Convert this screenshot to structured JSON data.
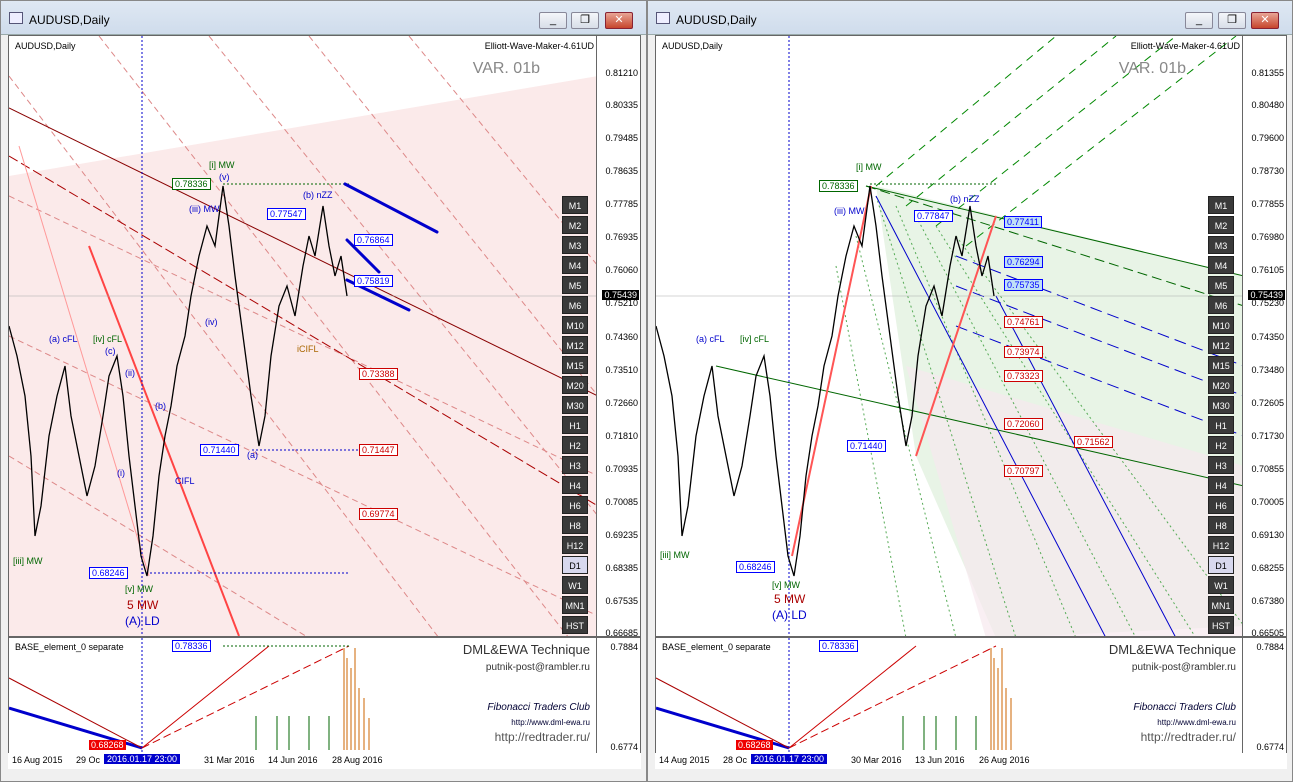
{
  "left": {
    "window_title": "AUDUSD,Daily",
    "symbol": "AUDUSD,Daily",
    "indicator": "Elliott-Wave-Maker-4.61UD",
    "variant": "VAR. 01b",
    "price_axis": [
      "0.81210",
      "0.80335",
      "0.79485",
      "0.78635",
      "0.77785",
      "0.76935",
      "0.76060",
      "0.75210",
      "0.74360",
      "0.73510",
      "0.72660",
      "0.71810",
      "0.70935",
      "0.70085",
      "0.69235",
      "0.68385",
      "0.67535",
      "0.66685"
    ],
    "current_price": "0.75439",
    "boxes": {
      "high": "0.78336",
      "b_nzz": "0.77547",
      "p76864": "0.76864",
      "p75819": "0.75819",
      "p73388": "0.73388",
      "low_a": "0.71440",
      "p71447": "0.71447",
      "p69774": "0.69774",
      "low": "0.68246"
    },
    "wave_labels": {
      "i_mw": "[i] MW",
      "iii_mw": "(iii) MW",
      "b_nzz": "(b) nZZ",
      "v": "(v)",
      "iv": "(iv)",
      "a": "(a)",
      "a_cfl": "(a) cFL",
      "iv_cfl": "[iv] cFL",
      "c": "(c)",
      "ii": "(ii)",
      "b": "(b)",
      "i": "(i)",
      "iii_mw_low": "[iii] MW",
      "v_mw": "[v] MW",
      "five_mw": "5 MW",
      "a_ld": "(A) LD",
      "cifl": "iCIFL",
      "cfl": "CIFL"
    },
    "indicator_window": "BASE_element_0 separate",
    "ind_box": "0.78336",
    "ind_low": "0.68268",
    "ind_axis_top": "0.7884",
    "ind_axis_bot": "0.6774",
    "tech": "DML&EWA Technique",
    "mail": "putnik-post@rambler.ru",
    "club": "Fibonacci Traders Club",
    "club_url": "http://www.dml-ewa.ru",
    "redtrader": "http://redtrader.ru/",
    "dates": [
      "16 Aug 2015",
      "29 Oc",
      "31 Mar 2016",
      "14 Jun 2016",
      "28 Aug 2016"
    ],
    "cursor_date": "2016.01.17 23:00"
  },
  "right": {
    "window_title": "AUDUSD,Daily",
    "symbol": "AUDUSD,Daily",
    "indicator": "Elliott-Wave-Maker-4.61UD",
    "variant": "VAR. 01b",
    "price_axis": [
      "0.81355",
      "0.80480",
      "0.79600",
      "0.78730",
      "0.77855",
      "0.76980",
      "0.76105",
      "0.75230",
      "0.74350",
      "0.73480",
      "0.72605",
      "0.71730",
      "0.70855",
      "0.70005",
      "0.69130",
      "0.68255",
      "0.67380",
      "0.66505"
    ],
    "current_price": "0.75439",
    "boxes": {
      "high": "0.78336",
      "b_nzz": "0.77847",
      "p77411": "0.77411",
      "p76294": "0.76294",
      "p75735": "0.75735",
      "p74761": "0.74761",
      "p73974": "0.73974",
      "p73323": "0.73323",
      "low_a": "0.71440",
      "p72060": "0.72060",
      "p71562": "0.71562",
      "p70797": "0.70797",
      "low": "0.68246"
    },
    "indicator_window": "BASE_element_0 separate",
    "ind_box": "0.78336",
    "ind_low": "0.68268",
    "ind_axis_top": "0.7884",
    "ind_axis_bot": "0.6774",
    "tech": "DML&EWA Technique",
    "mail": "putnik-post@rambler.ru",
    "club": "Fibonacci Traders Club",
    "club_url": "http://www.dml-ewa.ru",
    "redtrader": "http://redtrader.ru/",
    "dates": [
      "14 Aug 2015",
      "28 Oc",
      "30 Mar 2016",
      "13 Jun 2016",
      "26 Aug 2016"
    ],
    "cursor_date": "2016.01.17 23:00"
  },
  "timeframes": [
    "M1",
    "M2",
    "M3",
    "M4",
    "M5",
    "M6",
    "M10",
    "M12",
    "M15",
    "M20",
    "M30",
    "H1",
    "H2",
    "H3",
    "H4",
    "H6",
    "H8",
    "H12",
    "D1",
    "W1",
    "MN1",
    "HST"
  ],
  "selected_timeframe": "D1",
  "title_buttons": {
    "minimize": "_",
    "restore": "❐",
    "close": "✕"
  }
}
